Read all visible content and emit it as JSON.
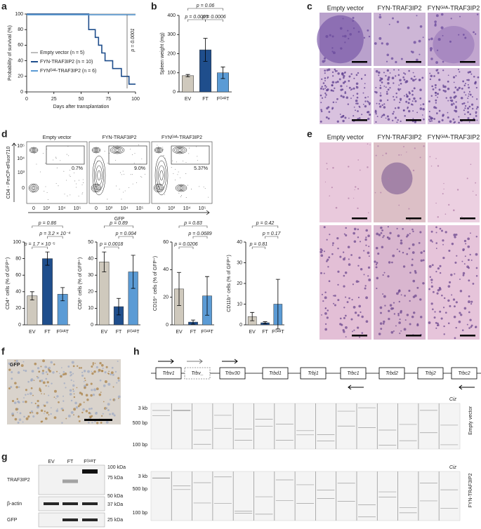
{
  "chart_data": [
    {
      "type": "line",
      "xlabel": "Days after transplantation",
      "ylabel": "Probability of survival (%)",
      "xlim": [
        0,
        100
      ],
      "xticks": [
        0,
        25,
        50,
        75,
        100
      ],
      "ylim": [
        0,
        100
      ],
      "yticks": [
        0,
        20,
        40,
        60,
        80,
        100
      ],
      "annotation": "p = 0.0001",
      "series": [
        {
          "name": "Empty vector (n = 5)",
          "color": "#bdbdbd",
          "x": [
            0,
            100
          ],
          "values": [
            100,
            100
          ]
        },
        {
          "name": "FYN-TRAF3IP2 (n = 10)",
          "color": "#1f4e8c",
          "x": [
            0,
            57,
            57,
            63,
            63,
            66,
            66,
            69,
            69,
            72,
            72,
            79,
            79,
            87,
            87,
            94,
            94,
            100
          ],
          "values": [
            100,
            100,
            80,
            80,
            70,
            70,
            60,
            60,
            50,
            50,
            40,
            40,
            30,
            30,
            20,
            20,
            10,
            10
          ]
        },
        {
          "name": "FYNᴳ²ᴬ-TRAF3IP2 (n = 6)",
          "color": "#5b9bd5",
          "x": [
            0,
            100
          ],
          "values": [
            99,
            99
          ]
        }
      ]
    },
    {
      "type": "bar",
      "ylabel": "Spleen weight (mg)",
      "categories": [
        "EV",
        "FT",
        "Fᴳ²ᴬT"
      ],
      "colors": [
        "#cfc9bd",
        "#1f4e8c",
        "#5b9bd5"
      ],
      "values": [
        85,
        220,
        100
      ],
      "errors": [
        6,
        60,
        30
      ],
      "ylim": [
        0,
        400
      ],
      "yticks": [
        0,
        100,
        200,
        300,
        400
      ],
      "p_values": [
        "p = 0.06",
        "p = 0.0005",
        "p = 0.0006"
      ]
    },
    {
      "type": "bar",
      "ylabel": "CD4⁺ cells (% of GFP⁺)",
      "categories": [
        "EV",
        "FT",
        "Fᴳ²ᴬT"
      ],
      "colors": [
        "#cfc9bd",
        "#1f4e8c",
        "#5b9bd5"
      ],
      "values": [
        35,
        80,
        37
      ],
      "errors": [
        5,
        8,
        8
      ],
      "ylim": [
        0,
        100
      ],
      "yticks": [
        0,
        20,
        40,
        60,
        80,
        100
      ],
      "p_values": [
        "p = 0.86",
        "p = 3.2 × 10⁻⁴",
        "p = 1.7 × 10⁻⁵"
      ]
    },
    {
      "type": "bar",
      "ylabel": "CD8⁺ cells (% of GFP⁺)",
      "categories": [
        "EV",
        "FT",
        "Fᴳ²ᴬT"
      ],
      "colors": [
        "#cfc9bd",
        "#1f4e8c",
        "#5b9bd5"
      ],
      "values": [
        38,
        11,
        32
      ],
      "errors": [
        6,
        5,
        10
      ],
      "ylim": [
        0,
        50
      ],
      "yticks": [
        0,
        10,
        20,
        30,
        40,
        50
      ],
      "p_values": [
        "p = 0.89",
        "p = 0.004",
        "p = 0.0018"
      ]
    },
    {
      "type": "bar",
      "ylabel": "CD19⁺ cells (% of GFP⁺)",
      "categories": [
        "EV",
        "FT",
        "Fᴳ²ᴬT"
      ],
      "colors": [
        "#cfc9bd",
        "#1f4e8c",
        "#5b9bd5"
      ],
      "values": [
        26,
        2,
        21
      ],
      "errors": [
        12,
        1.5,
        14
      ],
      "ylim": [
        0,
        60
      ],
      "yticks": [
        0,
        20,
        40,
        60
      ],
      "p_values": [
        "p = 0.83",
        "p = 0.0689",
        "p = 0.0206"
      ]
    },
    {
      "type": "bar",
      "ylabel": "CD11b⁺ cells (% of GFP⁺)",
      "categories": [
        "EV",
        "FT",
        "Fᴳ²ᴬT"
      ],
      "colors": [
        "#cfc9bd",
        "#1f4e8c",
        "#5b9bd5"
      ],
      "values": [
        4,
        1,
        10
      ],
      "errors": [
        2,
        0.5,
        12
      ],
      "ylim": [
        0,
        40
      ],
      "yticks": [
        0,
        10,
        20,
        30,
        40
      ],
      "p_values": [
        "p = 0.42",
        "p = 0.17",
        "p = 0.81"
      ]
    }
  ],
  "panel_letters": [
    "a",
    "b",
    "c",
    "d",
    "e",
    "f",
    "g",
    "h"
  ],
  "histology_c": {
    "titles": [
      "Empty vector",
      "FYN-TRAF3IP2",
      "FYNᴳ²ᴬ-TRAF3IP2"
    ]
  },
  "histology_e": {
    "titles": [
      "Empty vector",
      "FYN-TRAF3IP2",
      "FYNᴳ²ᴬ-TRAF3IP2"
    ]
  },
  "flow": {
    "titles": [
      "Empty vector",
      "FYN-TRAF3IP2",
      "FYNᴳ²ᴬ-TRAF3IP2"
    ],
    "gates": [
      "0.7%",
      "9.0%",
      "5.37%"
    ],
    "y_label": "CD4 - PerCP-eFluor710",
    "x_label": "GFP",
    "y_ticks": [
      "10⁵",
      "10⁴",
      "10³",
      "0"
    ],
    "x_ticks": [
      "0",
      "10³",
      "10⁴",
      "10⁵"
    ]
  },
  "ihc": {
    "label": "GFP"
  },
  "western": {
    "lanes": [
      "EV",
      "FT",
      "Fᴳ²ᴬT"
    ],
    "rows": [
      "TRAF3IP2",
      "β-actin",
      "GFP"
    ],
    "markers": [
      "100 kDa",
      "75 kDa",
      "50 kDa",
      "37 kDa",
      "25 kDa"
    ]
  },
  "locus": {
    "segments": [
      "Trbv1",
      "Trbv_",
      "Trbv30",
      "Trbd1",
      "Trbj1",
      "Trbc1",
      "Trbd2",
      "Trbj2",
      "Trbc2"
    ]
  },
  "gels": [
    {
      "label": "Empty vector",
      "ladder": [
        "3 kb",
        "500 bp",
        "100 bp"
      ],
      "marker": "Ciz"
    },
    {
      "label": "FYN-TRAF3IP2",
      "ladder": [
        "3 kb",
        "500 bp",
        "100 bp"
      ],
      "marker": "Ciz"
    }
  ]
}
